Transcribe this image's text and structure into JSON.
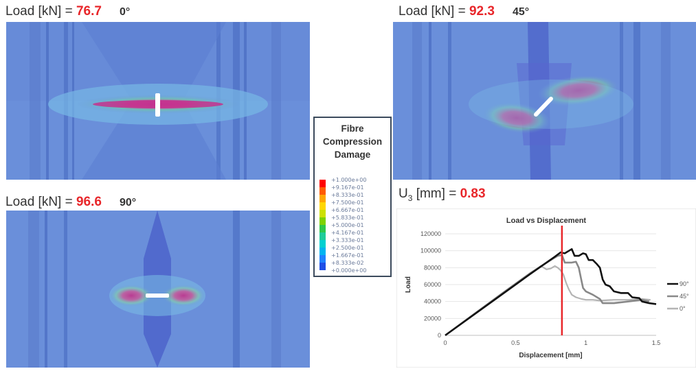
{
  "panels": [
    {
      "label": "Load [kN] = ",
      "value": "76.7",
      "angle": "0°"
    },
    {
      "label": "Load [kN] = ",
      "value": "92.3",
      "angle": "45°"
    },
    {
      "label": "Load [kN] = ",
      "value": "96.6",
      "angle": "90°"
    }
  ],
  "displacement_readout": {
    "label_main": "U",
    "label_sub": "3",
    "label_unit": " [mm] = ",
    "value": "0.83"
  },
  "legend": {
    "title_lines": [
      "Fibre",
      "Compression",
      "Damage"
    ],
    "ticks": [
      "+1.000e+00",
      "+9.167e-01",
      "+8.333e-01",
      "+7.500e-01",
      "+6.667e-01",
      "+5.833e-01",
      "+5.000e-01",
      "+4.167e-01",
      "+3.333e-01",
      "+2.500e-01",
      "+1.667e-01",
      "+8.333e-02",
      "+0.000e+00"
    ],
    "colors": [
      "#ff0000",
      "#ff5a00",
      "#ffa500",
      "#ffd700",
      "#cde000",
      "#7ed200",
      "#2fc84a",
      "#1fcc9a",
      "#00d0d0",
      "#00b4f0",
      "#1e82ff",
      "#1e4ee6",
      "#1a23c8"
    ]
  },
  "chart_data": {
    "type": "line",
    "title": "Load vs Displacement",
    "xlabel": "Displacement  [mm]",
    "ylabel": "Load",
    "xlim": [
      0,
      1.5
    ],
    "ylim": [
      0,
      120000
    ],
    "xticks": [
      "0",
      "0.5",
      "1",
      "1.5"
    ],
    "yticks": [
      "0",
      "20000",
      "40000",
      "60000",
      "80000",
      "100000",
      "120000"
    ],
    "legend_position": "right",
    "marker_line": {
      "x": 0.83,
      "color": "#e8262a"
    },
    "series": [
      {
        "name": "90°",
        "color": "#111111",
        "width": 2.6,
        "points": [
          [
            0,
            0
          ],
          [
            0.2,
            24000
          ],
          [
            0.4,
            48000
          ],
          [
            0.6,
            72000
          ],
          [
            0.78,
            93000
          ],
          [
            0.82,
            98000
          ],
          [
            0.85,
            97000
          ],
          [
            0.88,
            100000
          ],
          [
            0.9,
            102000
          ],
          [
            0.92,
            94000
          ],
          [
            0.95,
            94000
          ],
          [
            0.98,
            97000
          ],
          [
            1.0,
            96000
          ],
          [
            1.02,
            89000
          ],
          [
            1.05,
            89000
          ],
          [
            1.08,
            84000
          ],
          [
            1.1,
            80000
          ],
          [
            1.12,
            66000
          ],
          [
            1.14,
            60000
          ],
          [
            1.17,
            58000
          ],
          [
            1.2,
            52000
          ],
          [
            1.25,
            50000
          ],
          [
            1.3,
            50000
          ],
          [
            1.33,
            45000
          ],
          [
            1.38,
            44000
          ],
          [
            1.4,
            40000
          ],
          [
            1.45,
            38000
          ],
          [
            1.5,
            37000
          ]
        ]
      },
      {
        "name": "45°",
        "color": "#888888",
        "width": 2.6,
        "points": [
          [
            0,
            0
          ],
          [
            0.2,
            24500
          ],
          [
            0.4,
            49000
          ],
          [
            0.6,
            73000
          ],
          [
            0.74,
            88000
          ],
          [
            0.78,
            92000
          ],
          [
            0.8,
            94000
          ],
          [
            0.83,
            95000
          ],
          [
            0.85,
            86000
          ],
          [
            0.9,
            86000
          ],
          [
            0.93,
            87000
          ],
          [
            0.95,
            80000
          ],
          [
            0.97,
            64000
          ],
          [
            0.98,
            56000
          ],
          [
            1.0,
            52000
          ],
          [
            1.05,
            48000
          ],
          [
            1.1,
            43000
          ],
          [
            1.12,
            38000
          ],
          [
            1.15,
            38000
          ],
          [
            1.2,
            38000
          ],
          [
            1.3,
            40000
          ],
          [
            1.4,
            42000
          ],
          [
            1.45,
            40000
          ]
        ]
      },
      {
        "name": "0°",
        "color": "#b4b4b4",
        "width": 2.2,
        "points": [
          [
            0,
            0
          ],
          [
            0.2,
            24000
          ],
          [
            0.4,
            48000
          ],
          [
            0.55,
            66000
          ],
          [
            0.65,
            78000
          ],
          [
            0.68,
            82000
          ],
          [
            0.7,
            80000
          ],
          [
            0.72,
            78000
          ],
          [
            0.75,
            79000
          ],
          [
            0.78,
            82000
          ],
          [
            0.8,
            80000
          ],
          [
            0.82,
            77000
          ],
          [
            0.84,
            72000
          ],
          [
            0.86,
            62000
          ],
          [
            0.88,
            54000
          ],
          [
            0.9,
            48000
          ],
          [
            0.93,
            45000
          ],
          [
            0.97,
            43000
          ],
          [
            1.0,
            42000
          ],
          [
            1.05,
            42000
          ],
          [
            1.1,
            41000
          ],
          [
            1.2,
            42000
          ],
          [
            1.3,
            42000
          ],
          [
            1.4,
            43000
          ],
          [
            1.46,
            42000
          ]
        ]
      }
    ]
  }
}
